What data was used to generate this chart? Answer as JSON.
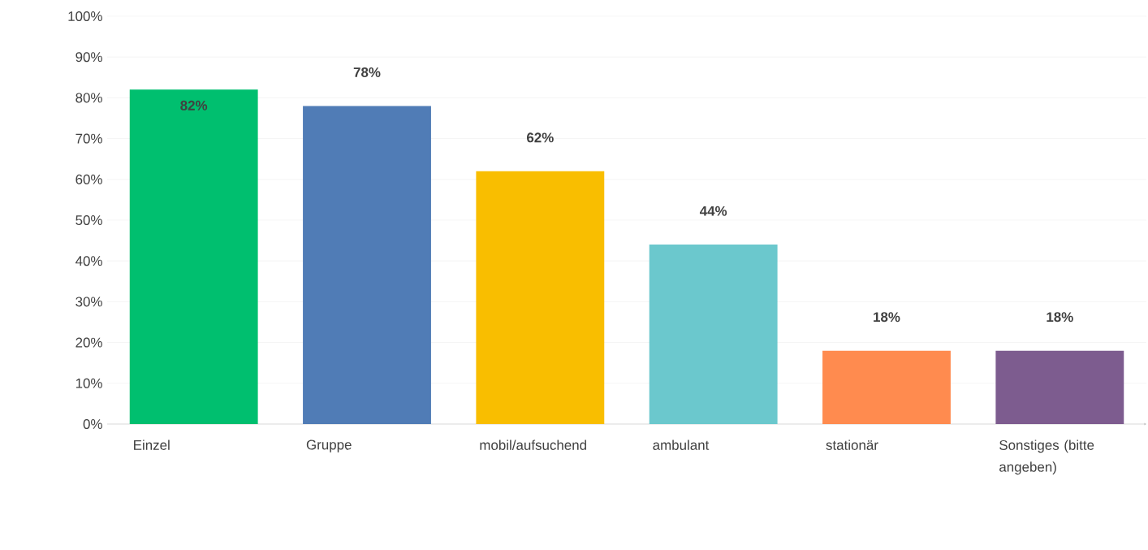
{
  "chart_data": {
    "type": "bar",
    "categories": [
      "Einzel",
      "Gruppe",
      "mobil/aufsuchend",
      "ambulant",
      "stationär",
      "Sonstiges (bitte angeben)"
    ],
    "values": [
      82,
      78,
      62,
      44,
      18,
      18
    ],
    "colors": [
      "#00bf6f",
      "#507cb6",
      "#f9be00",
      "#6bc8cd",
      "#ff8b4f",
      "#7d5c8f"
    ],
    "value_labels": [
      "82%",
      "78%",
      "62%",
      "44%",
      "18%",
      "18%"
    ],
    "ylim": [
      0,
      100
    ],
    "yticks": [
      {
        "value": 0,
        "label": "0%"
      },
      {
        "value": 10,
        "label": "10%"
      },
      {
        "value": 20,
        "label": "20%"
      },
      {
        "value": 30,
        "label": "30%"
      },
      {
        "value": 40,
        "label": "40%"
      },
      {
        "value": 50,
        "label": "50%"
      },
      {
        "value": 60,
        "label": "60%"
      },
      {
        "value": 70,
        "label": "70%"
      },
      {
        "value": 80,
        "label": "80%"
      },
      {
        "value": 90,
        "label": "90%"
      },
      {
        "value": 100,
        "label": "100%"
      }
    ],
    "grid": "y"
  }
}
